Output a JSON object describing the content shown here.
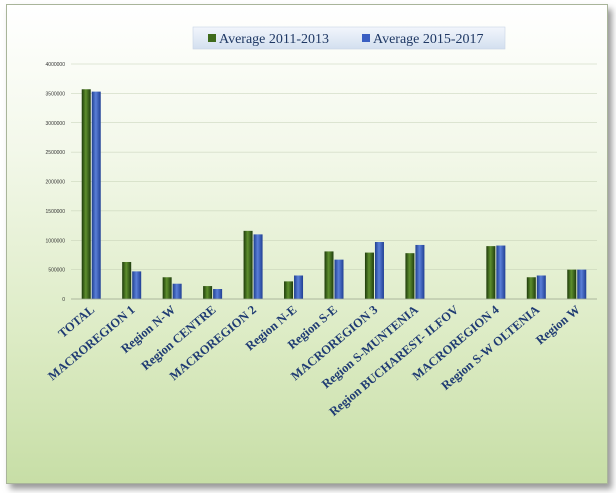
{
  "chart_data": {
    "type": "bar",
    "title": "",
    "xlabel": "",
    "ylabel": "",
    "ylim": [
      0,
      4000000
    ],
    "y_ticks": [
      "0",
      "500000",
      "1000000",
      "1500000",
      "2000000",
      "2500000",
      "3000000",
      "3500000",
      "4000000"
    ],
    "y_tick_values": [
      0,
      500000,
      1000000,
      1500000,
      2000000,
      2500000,
      3000000,
      3500000,
      4000000
    ],
    "grid": true,
    "legend_position": "top",
    "categories": [
      "TOTAL",
      "MACROREGION 1",
      "Region N-W",
      "Region CENTRE",
      "MACROREGION 2",
      "Region N-E",
      "Region S-E",
      "MACROREGION 3",
      "Region S-MUNTENIA",
      "Region BUCHAREST- ILFOV",
      "MACROREGION 4",
      "Region S-W OLTENIA",
      "Region W"
    ],
    "series": [
      {
        "name": "Average 2011-2013",
        "color": "#3f6b1c",
        "values": [
          3570000,
          630000,
          370000,
          220000,
          1160000,
          300000,
          810000,
          790000,
          780000,
          0,
          900000,
          370000,
          500000
        ]
      },
      {
        "name": "Average 2015-2017",
        "color": "#3a5fc2",
        "values": [
          3530000,
          470000,
          260000,
          170000,
          1100000,
          400000,
          670000,
          970000,
          920000,
          0,
          910000,
          400000,
          500000
        ]
      }
    ]
  }
}
